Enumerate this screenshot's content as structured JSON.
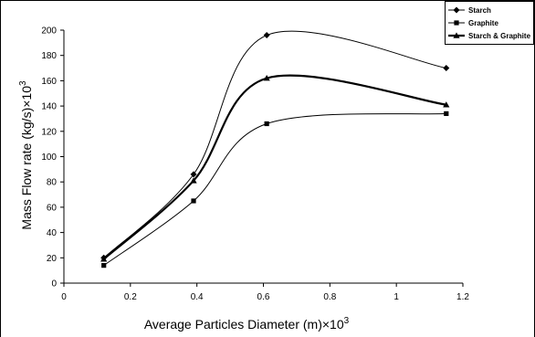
{
  "chart_data": {
    "type": "line",
    "xlabel": "Average Particles Diameter (m)×10",
    "xlabel_sup": "3",
    "ylabel": "Mass Flow rate (kg/s)×10",
    "ylabel_sup": "3",
    "xlim": [
      0,
      1.2
    ],
    "ylim": [
      0,
      200
    ],
    "x_ticks": [
      "0",
      "0.2",
      "0.4",
      "0.6",
      "0.8",
      "1",
      "1.2"
    ],
    "y_ticks": [
      "0",
      "20",
      "40",
      "60",
      "80",
      "100",
      "120",
      "140",
      "160",
      "180",
      "200"
    ],
    "grid": false,
    "legend_position": "top-right",
    "x": [
      0.12,
      0.39,
      0.61,
      1.15
    ],
    "series": [
      {
        "name": "Starch",
        "marker": "diamond",
        "stroke_width": 1,
        "values": [
          20,
          86,
          196,
          170
        ]
      },
      {
        "name": "Graphite",
        "marker": "square",
        "stroke_width": 1,
        "values": [
          14,
          65,
          126,
          134
        ]
      },
      {
        "name": "Starch & Graphite",
        "marker": "triangle",
        "stroke_width": 2.2,
        "values": [
          19,
          81,
          162,
          141
        ]
      }
    ]
  }
}
